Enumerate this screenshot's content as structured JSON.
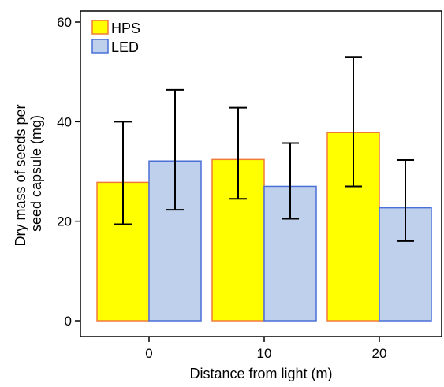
{
  "chart_data": {
    "type": "bar",
    "title": "",
    "xlabel": "Distance from light (m)",
    "ylabel_lines": [
      "Dry mass of seeds per",
      "seed capsule (mg)"
    ],
    "categories": [
      "0",
      "10",
      "20"
    ],
    "ylim": [
      0,
      60
    ],
    "yticks": [
      "0",
      "20",
      "40",
      "60"
    ],
    "grid": false,
    "legend_position": "top-left",
    "series": [
      {
        "name": "HPS",
        "fill": "#ffff00",
        "stroke": "#f07a3a",
        "values": [
          27.8,
          32.4,
          37.8
        ],
        "error_low": [
          19.4,
          24.5,
          27.0
        ],
        "error_high": [
          40.0,
          42.8,
          53.0
        ]
      },
      {
        "name": "LED",
        "fill": "#bed0ec",
        "stroke": "#4a6fd6",
        "values": [
          32.1,
          27.0,
          22.7
        ],
        "error_low": [
          22.3,
          20.5,
          16.0
        ],
        "error_high": [
          46.4,
          35.7,
          32.3
        ]
      }
    ]
  }
}
